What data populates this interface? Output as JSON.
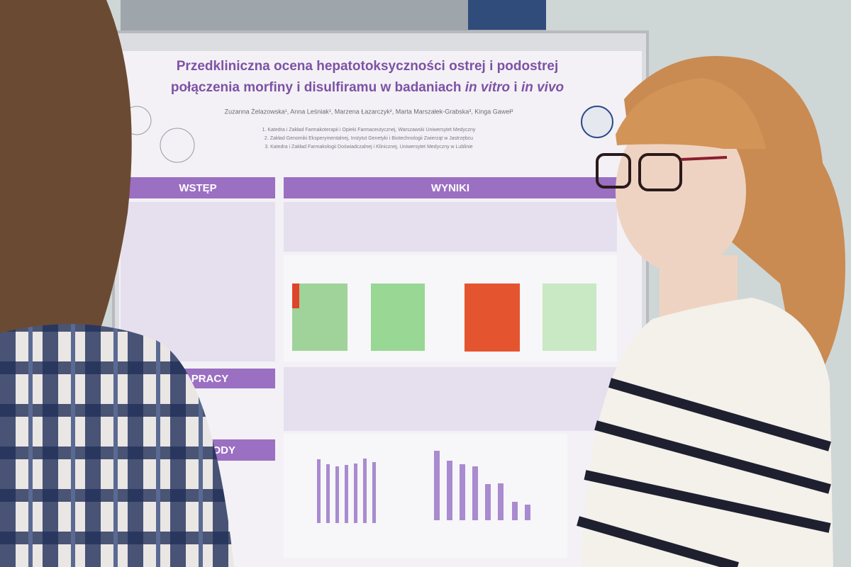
{
  "poster": {
    "title_line1": "Przedkliniczna ocena hepatotoksyczności ostrej i podostrej",
    "title_line2": [
      "połączenia morfiny i disulfiramu w badaniach ",
      "in vitro",
      " i ",
      "in vivo"
    ],
    "authors": "Zuzanna Żelazowska¹, Anna Leśniak¹, Marzena Łazarczyk², Marta Marszałek-Grabska³, Kinga Gaweł³",
    "affiliations": [
      "1. Katedra i Zakład Farmakoterapii i Opieki Farmaceutycznej, Warszawski Uniwersytet Medyczny",
      "2. Zakład Genomiki Eksperymentalnej, Instytut Genetyki i Biotechnologii Zwierząt w Jastrzębcu",
      "3. Katedra i Zakład Farmakologii Doświadczalnej i Klinicznej, Uniwersytet Medyczny w Lublinie"
    ],
    "sections": [
      "WSTĘP",
      "WYNIKI",
      "CEL PRACY",
      "METODY"
    ]
  }
}
